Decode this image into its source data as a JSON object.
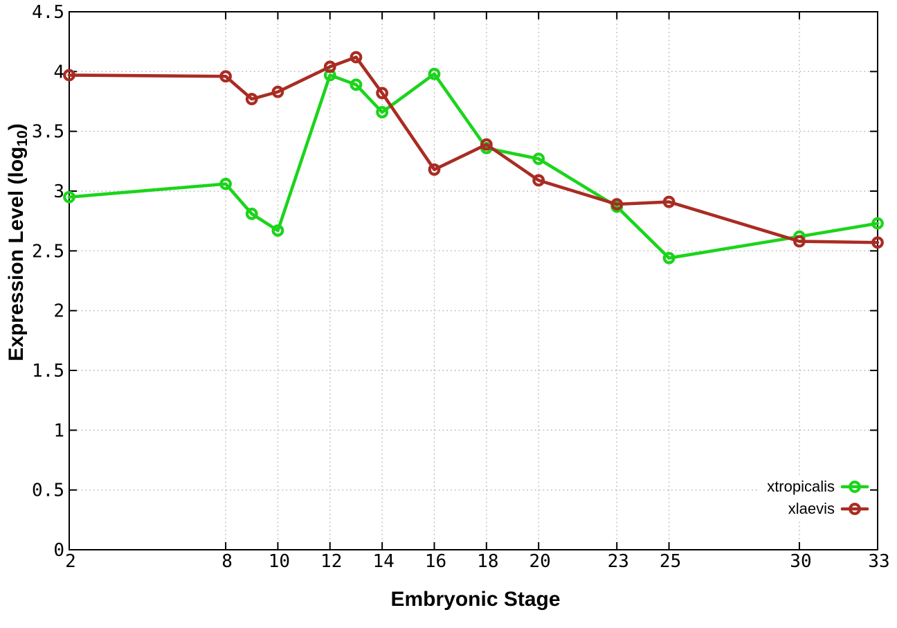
{
  "chart_data": {
    "type": "line",
    "title": "",
    "xlabel": "Embryonic Stage",
    "ylabel": {
      "pre": "Expression Level (log",
      "sub": "10",
      "post": ")"
    },
    "xlim": [
      2,
      33
    ],
    "ylim": [
      0,
      4.5
    ],
    "grid": true,
    "legend_position": "bottom-right",
    "marker": "open-circle",
    "x_ticks": [
      2,
      8,
      10,
      12,
      14,
      16,
      18,
      20,
      23,
      25,
      30,
      33
    ],
    "x_tick_labels": [
      "2",
      "8",
      "10",
      "12",
      "14",
      "16",
      "18",
      "20",
      "23",
      "25",
      "30",
      "33"
    ],
    "y_ticks": [
      0,
      0.5,
      1,
      1.5,
      2,
      2.5,
      3,
      3.5,
      4,
      4.5
    ],
    "y_tick_labels": [
      "0",
      "0.5",
      "1",
      "1.5",
      "2",
      "2.5",
      "3",
      "3.5",
      "4",
      "4.5"
    ],
    "x": [
      2,
      8,
      9,
      10,
      12,
      13,
      14,
      16,
      18,
      20,
      23,
      25,
      30,
      33
    ],
    "series": [
      {
        "name": "xtropicalis",
        "color": "#1bd41b",
        "values": [
          2.95,
          3.06,
          2.81,
          2.67,
          3.97,
          3.89,
          3.66,
          3.98,
          3.36,
          3.27,
          2.87,
          2.44,
          2.62,
          2.73
        ]
      },
      {
        "name": "xlaevis",
        "color": "#a92c23",
        "values": [
          3.97,
          3.96,
          3.77,
          3.83,
          4.04,
          4.12,
          3.82,
          3.18,
          3.39,
          3.09,
          2.89,
          2.91,
          2.58,
          2.57
        ]
      }
    ],
    "grid_color": "#b9b9b9",
    "axis_color": "#000000"
  }
}
